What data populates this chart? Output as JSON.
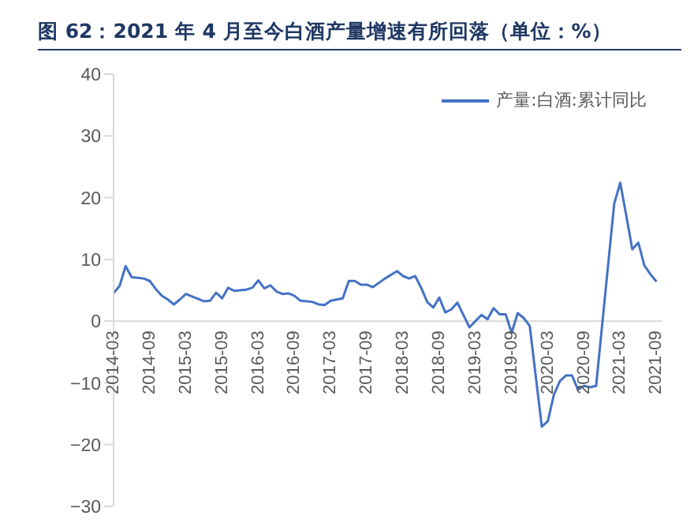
{
  "chart_data": {
    "type": "line",
    "title": "图 62：2021 年 4 月至今白酒产量增速有所回落（单位：%）",
    "x": [
      "2014-03",
      "2014-04",
      "2014-05",
      "2014-06",
      "2014-07",
      "2014-08",
      "2014-09",
      "2014-10",
      "2014-11",
      "2014-12",
      "2015-01",
      "2015-02",
      "2015-03",
      "2015-04",
      "2015-05",
      "2015-06",
      "2015-07",
      "2015-08",
      "2015-09",
      "2015-10",
      "2015-11",
      "2015-12",
      "2016-01",
      "2016-02",
      "2016-03",
      "2016-04",
      "2016-05",
      "2016-06",
      "2016-07",
      "2016-08",
      "2016-09",
      "2016-10",
      "2016-11",
      "2016-12",
      "2017-01",
      "2017-02",
      "2017-03",
      "2017-04",
      "2017-05",
      "2017-06",
      "2017-07",
      "2017-08",
      "2017-09",
      "2017-10",
      "2017-11",
      "2017-12",
      "2018-01",
      "2018-02",
      "2018-03",
      "2018-04",
      "2018-05",
      "2018-06",
      "2018-07",
      "2018-08",
      "2018-09",
      "2018-10",
      "2018-11",
      "2018-12",
      "2019-01",
      "2019-02",
      "2019-03",
      "2019-04",
      "2019-05",
      "2019-06",
      "2019-07",
      "2019-08",
      "2019-09",
      "2019-10",
      "2019-11",
      "2019-12",
      "2020-02",
      "2020-03",
      "2020-04",
      "2020-05",
      "2020-06",
      "2020-07",
      "2020-08",
      "2020-09",
      "2020-10",
      "2020-11",
      "2021-02",
      "2021-03",
      "2021-04",
      "2021-05",
      "2021-06",
      "2021-07",
      "2021-08",
      "2021-09"
    ],
    "series": [
      {
        "name": "产量:白酒:累计同比",
        "color": "#4472c4",
        "values": [
          4.5,
          5.7,
          8.9,
          7.1,
          7.0,
          6.9,
          6.5,
          5.2,
          4.1,
          3.5,
          2.7,
          3.5,
          4.4,
          4.0,
          3.6,
          3.2,
          3.3,
          4.6,
          3.7,
          5.4,
          4.9,
          5.0,
          5.1,
          5.4,
          6.6,
          5.3,
          5.8,
          4.8,
          4.4,
          4.5,
          4.1,
          3.3,
          3.2,
          3.1,
          2.7,
          2.6,
          3.3,
          3.5,
          3.7,
          6.5,
          6.5,
          5.9,
          5.9,
          5.5,
          6.2,
          6.9,
          7.5,
          8.1,
          7.3,
          6.9,
          7.3,
          5.4,
          3.1,
          2.2,
          3.8,
          1.4,
          1.9,
          3.0,
          1.0,
          -1.0,
          0,
          1.0,
          0.3,
          2.1,
          1.1,
          1.1,
          -1.9,
          1.3,
          0.5,
          -0.8,
          -17.1,
          -16.2,
          -11.9,
          -9.7,
          -8.8,
          -8.8,
          -11.1,
          -10.5,
          -10.7,
          -10.5,
          19.0,
          22.4,
          17.1,
          11.6,
          12.7,
          9.0,
          7.6,
          6.4
        ]
      }
    ],
    "xlim": [
      "2014-03",
      "2021-10"
    ],
    "xticks": [
      "2014-03",
      "2014-09",
      "2015-03",
      "2015-09",
      "2016-03",
      "2016-09",
      "2017-03",
      "2017-09",
      "2018-03",
      "2018-09",
      "2019-03",
      "2019-09",
      "2020-03",
      "2020-09",
      "2021-03",
      "2021-09"
    ],
    "ylim": [
      -30,
      40
    ],
    "yticks": [
      -30,
      -20,
      -10,
      0,
      10,
      20,
      30,
      40
    ],
    "legend": "top right",
    "marker": "none"
  }
}
